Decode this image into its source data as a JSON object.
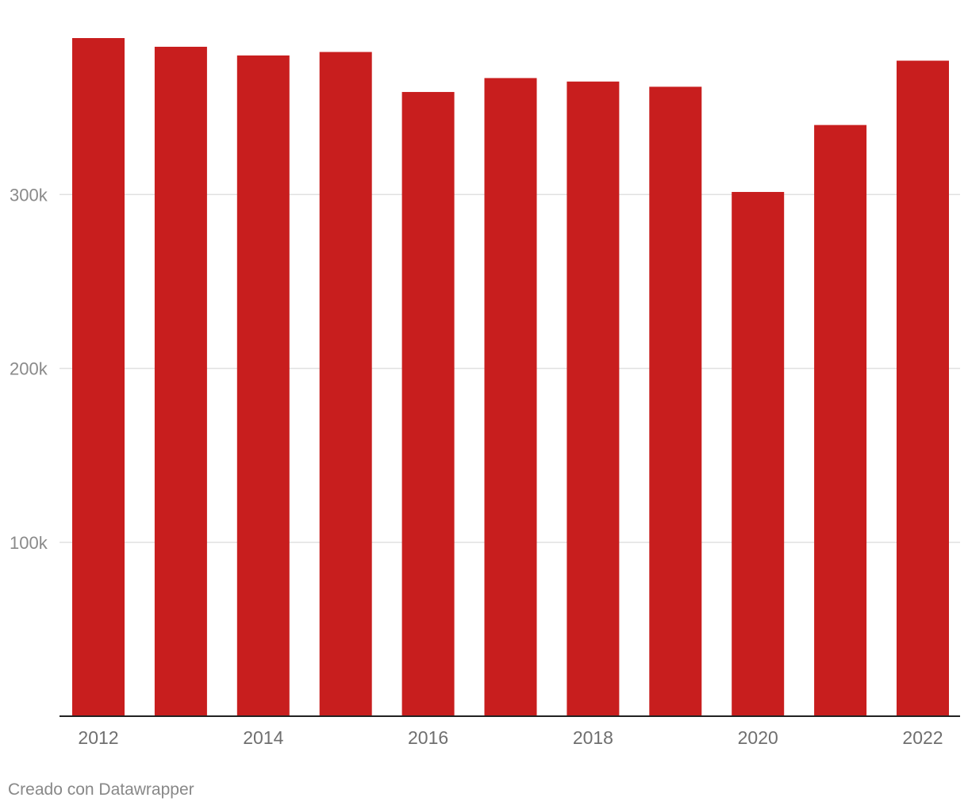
{
  "chart_data": {
    "type": "bar",
    "title": "",
    "xlabel": "",
    "ylabel": "",
    "categories": [
      "2012",
      "2013",
      "2014",
      "2015",
      "2016",
      "2017",
      "2018",
      "2019",
      "2020",
      "2021",
      "2022"
    ],
    "values": [
      390000,
      385000,
      380000,
      382000,
      359000,
      367000,
      365000,
      362000,
      301500,
      340000,
      377000
    ],
    "x_tick_labels": [
      "2012",
      "",
      "2014",
      "",
      "2016",
      "",
      "2018",
      "",
      "2020",
      "",
      "2022"
    ],
    "y_ticks": [
      {
        "value": 100000,
        "label": "100k"
      },
      {
        "value": 200000,
        "label": "200k"
      },
      {
        "value": 300000,
        "label": "300k"
      }
    ],
    "ylim": [
      0,
      390000
    ],
    "grid": true,
    "legend": "none",
    "colors": {
      "bar": "#c81e1e",
      "gridline": "#e1e1e1",
      "baseline": "#222222"
    }
  },
  "footer": {
    "credit": "Creado con Datawrapper"
  }
}
